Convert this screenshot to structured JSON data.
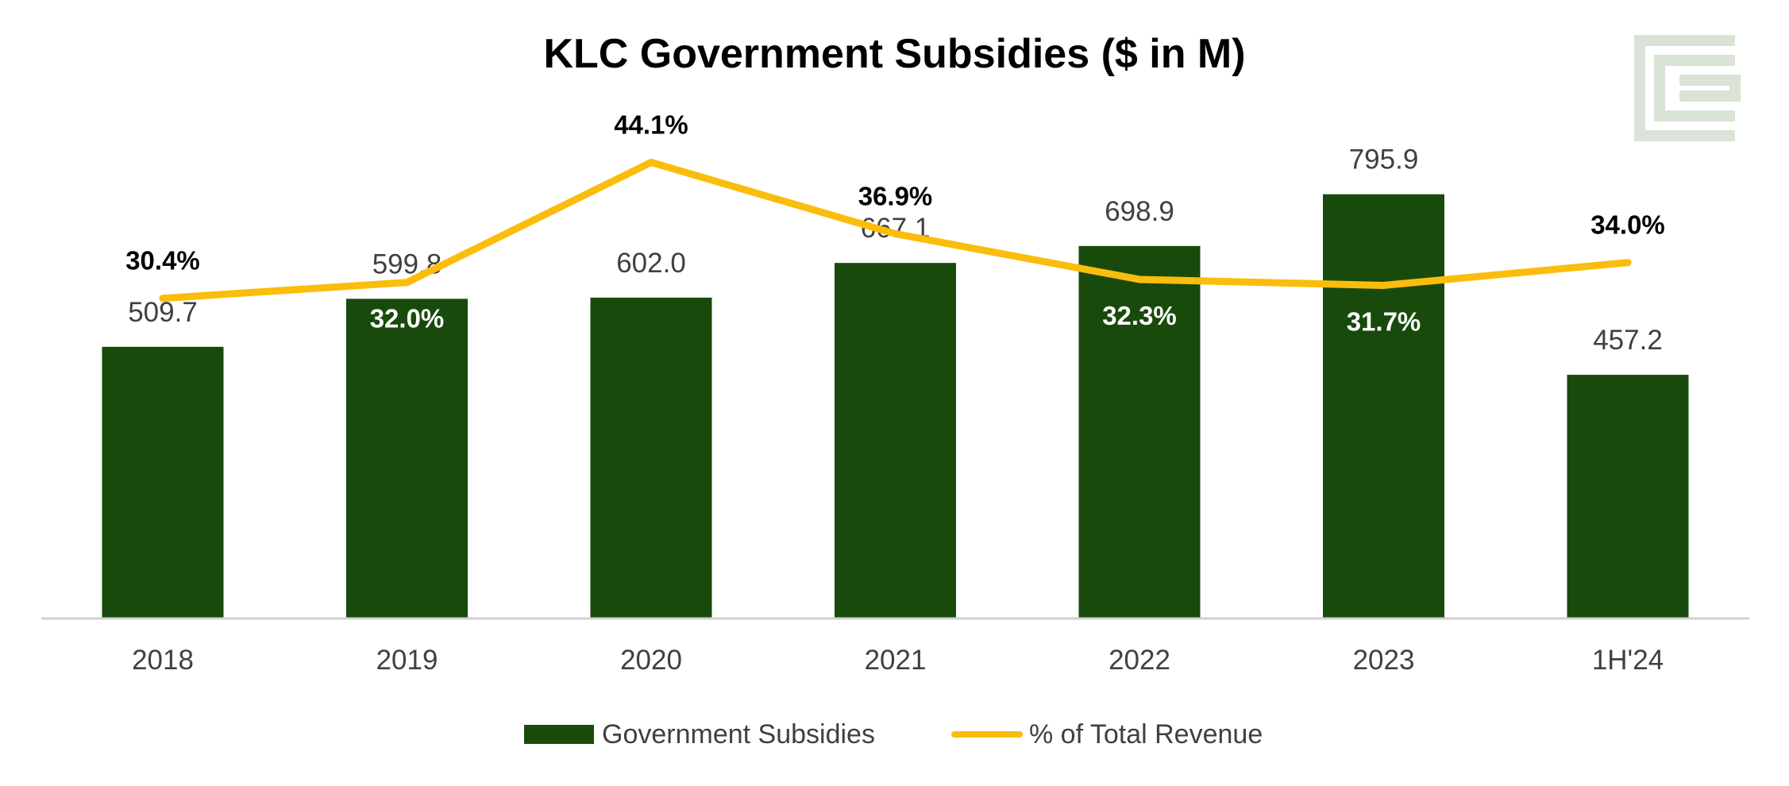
{
  "chart_data": {
    "type": "bar",
    "title": "KLC Government Subsidies ($ in M)",
    "categories": [
      "2018",
      "2019",
      "2020",
      "2021",
      "2022",
      "2023",
      "1H'24"
    ],
    "series": [
      {
        "name": "Government Subsidies",
        "type": "bar",
        "color": "#184a0c",
        "values": [
          509.7,
          599.8,
          602.0,
          667.1,
          698.9,
          795.9,
          457.2
        ],
        "labels": [
          "509.7",
          "599.8",
          "602.0",
          "667.1",
          "698.9",
          "795.9",
          "457.2"
        ]
      },
      {
        "name": "% of Total Revenue",
        "type": "line",
        "color": "#fbbd0c",
        "values": [
          30.4,
          32.0,
          44.1,
          36.9,
          32.3,
          31.7,
          34.0
        ],
        "labels": [
          "30.4%",
          "32.0%",
          "44.1%",
          "36.9%",
          "32.3%",
          "31.7%",
          "34.0%"
        ]
      }
    ],
    "ylim": [
      0,
      1000
    ],
    "y2lim": [
      0,
      50
    ],
    "grid": false,
    "legend_position": "bottom"
  },
  "logo": {
    "name": "firm-logo-icon",
    "color": "#d9e3d6"
  }
}
